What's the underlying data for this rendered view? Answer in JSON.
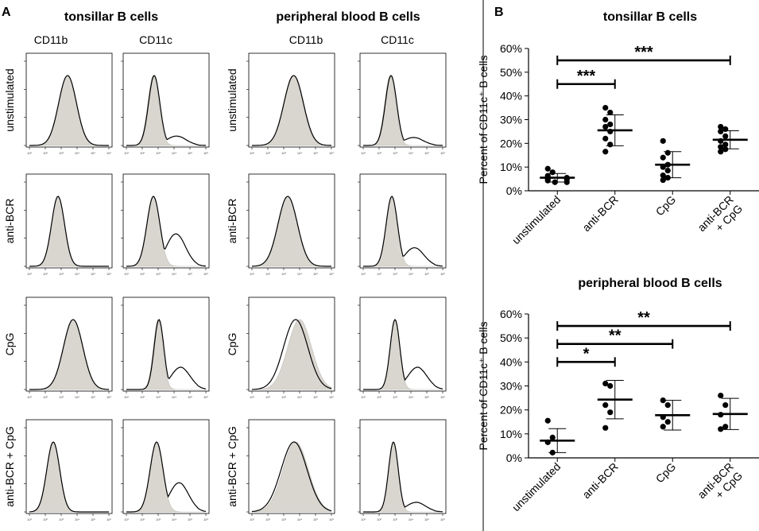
{
  "panel_a": {
    "letter": "A",
    "groups": [
      "tonsillar B cells",
      "peripheral blood B cells"
    ],
    "markers": [
      "CD11b",
      "CD11c"
    ],
    "rows": [
      "unstimulated",
      "anti-BCR",
      "CpG",
      "anti-BCR + CpG"
    ],
    "decade_labels": [
      "10¹",
      "10²",
      "10³",
      "10⁴",
      "10⁵",
      "10⁶"
    ],
    "fill_color": "#d9d6d0",
    "line_color": "#000000",
    "histograms": [
      [
        {
          "peak": 0.48,
          "width": 0.11,
          "shift": 0.0,
          "shoulder": 0
        },
        {
          "peak": 0.34,
          "width": 0.07,
          "shift": 0.01,
          "shoulder": 0.12
        },
        {
          "peak": 0.52,
          "width": 0.12,
          "shift": 0.005,
          "shoulder": 0
        },
        {
          "peak": 0.34,
          "width": 0.07,
          "shift": 0.01,
          "shoulder": 0.1
        }
      ],
      [
        {
          "peak": 0.36,
          "width": 0.08,
          "shift": 0.0,
          "shoulder": 0
        },
        {
          "peak": 0.34,
          "width": 0.08,
          "shift": 0.0,
          "shoulder": 0.45
        },
        {
          "peak": 0.45,
          "width": 0.12,
          "shift": 0.0,
          "shoulder": 0
        },
        {
          "peak": 0.36,
          "width": 0.07,
          "shift": 0.0,
          "shoulder": 0.25
        }
      ],
      [
        {
          "peak": 0.55,
          "width": 0.12,
          "shift": 0.0,
          "shoulder": 0
        },
        {
          "peak": 0.4,
          "width": 0.06,
          "shift": 0.01,
          "shoulder": 0.3
        },
        {
          "peak": 0.6,
          "width": 0.15,
          "shift": -0.05,
          "shoulder": 0
        },
        {
          "peak": 0.4,
          "width": 0.06,
          "shift": 0.0,
          "shoulder": 0.3
        }
      ],
      [
        {
          "peak": 0.3,
          "width": 0.08,
          "shift": 0.0,
          "shoulder": 0
        },
        {
          "peak": 0.38,
          "width": 0.08,
          "shift": 0.0,
          "shoulder": 0.4
        },
        {
          "peak": 0.55,
          "width": 0.16,
          "shift": -0.02,
          "shoulder": 0
        },
        {
          "peak": 0.38,
          "width": 0.06,
          "shift": 0.0,
          "shoulder": 0.12
        }
      ]
    ]
  },
  "chart_data": [
    {
      "type": "scatter",
      "panel": "B",
      "title": "tonsillar B cells",
      "ylabel": "Percent of CD11c⁺ B cells",
      "ylim": [
        0,
        60
      ],
      "yticks": [
        "0%",
        "10%",
        "20%",
        "30%",
        "40%",
        "50%",
        "60%"
      ],
      "categories": [
        "unstimulated",
        "anti-BCR",
        "CpG",
        "anti-BCR\n+ CpG"
      ],
      "points": [
        [
          9.3,
          7.8,
          6.3,
          5.5,
          5.0,
          4.8,
          4.3,
          3.6,
          3.6
        ],
        [
          35,
          33,
          30,
          28,
          27,
          25,
          22,
          19.5,
          16.5
        ],
        [
          21,
          16,
          14,
          11,
          10,
          8.5,
          6.5,
          5.5,
          4.5
        ],
        [
          27,
          26,
          25,
          23,
          21,
          19.5,
          18.5,
          17.5,
          16.5
        ]
      ],
      "means": [
        5.5,
        25.5,
        11,
        21.5
      ],
      "sd": [
        1.8,
        6.5,
        5.5,
        3.8
      ],
      "significance": [
        {
          "from": 0,
          "to": 1,
          "label": "***",
          "y": 45
        },
        {
          "from": 0,
          "to": 3,
          "label": "***",
          "y": 55
        }
      ]
    },
    {
      "type": "scatter",
      "title": "peripheral blood B cells",
      "ylabel": "Percent of CD11c⁺ B cells",
      "ylim": [
        0,
        60
      ],
      "yticks": [
        "0%",
        "10%",
        "20%",
        "30%",
        "40%",
        "50%",
        "60%"
      ],
      "categories": [
        "unstimulated",
        "anti-BCR",
        "CpG",
        "anti-BCR\n+ CpG"
      ],
      "points": [
        [
          15.5,
          8.5,
          6.5,
          2.2
        ],
        [
          31,
          30,
          22,
          19,
          12.5
        ],
        [
          24,
          22,
          17,
          15,
          13
        ],
        [
          26,
          22,
          18,
          13,
          12
        ]
      ],
      "means": [
        7.2,
        24.3,
        17.8,
        18.3
      ],
      "sd": [
        5,
        8,
        6.2,
        6.5
      ],
      "significance": [
        {
          "from": 0,
          "to": 1,
          "label": "*",
          "y": 40
        },
        {
          "from": 0,
          "to": 2,
          "label": "**",
          "y": 47.5
        },
        {
          "from": 0,
          "to": 3,
          "label": "**",
          "y": 55
        }
      ]
    }
  ]
}
